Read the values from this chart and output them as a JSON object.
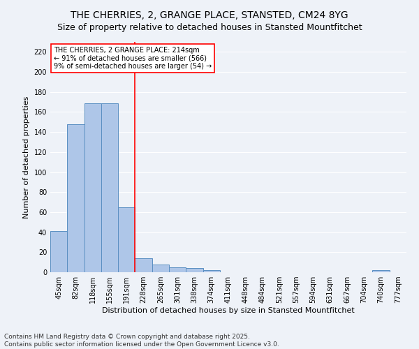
{
  "title": "THE CHERRIES, 2, GRANGE PLACE, STANSTED, CM24 8YG",
  "subtitle": "Size of property relative to detached houses in Stansted Mountfitchet",
  "xlabel": "Distribution of detached houses by size in Stansted Mountfitchet",
  "ylabel": "Number of detached properties",
  "categories": [
    "45sqm",
    "82sqm",
    "118sqm",
    "155sqm",
    "191sqm",
    "228sqm",
    "265sqm",
    "301sqm",
    "338sqm",
    "374sqm",
    "411sqm",
    "448sqm",
    "484sqm",
    "521sqm",
    "557sqm",
    "594sqm",
    "631sqm",
    "667sqm",
    "704sqm",
    "740sqm",
    "777sqm"
  ],
  "values": [
    41,
    148,
    169,
    169,
    65,
    14,
    8,
    5,
    4,
    2,
    0,
    0,
    0,
    0,
    0,
    0,
    0,
    0,
    0,
    2,
    0
  ],
  "bar_color": "#aec6e8",
  "bar_edge_color": "#5a8fc2",
  "vline_x": 4.5,
  "vline_color": "red",
  "annotation_text": "THE CHERRIES, 2 GRANGE PLACE: 214sqm\n← 91% of detached houses are smaller (566)\n9% of semi-detached houses are larger (54) →",
  "annotation_box_color": "white",
  "annotation_box_edge_color": "red",
  "ylim": [
    0,
    230
  ],
  "yticks": [
    0,
    20,
    40,
    60,
    80,
    100,
    120,
    140,
    160,
    180,
    200,
    220
  ],
  "footer": "Contains HM Land Registry data © Crown copyright and database right 2025.\nContains public sector information licensed under the Open Government Licence v3.0.",
  "bg_color": "#eef2f8",
  "plot_bg_color": "#eef2f8",
  "grid_color": "white",
  "title_fontsize": 10,
  "subtitle_fontsize": 9,
  "axis_label_fontsize": 8,
  "tick_fontsize": 7,
  "footer_fontsize": 6.5
}
